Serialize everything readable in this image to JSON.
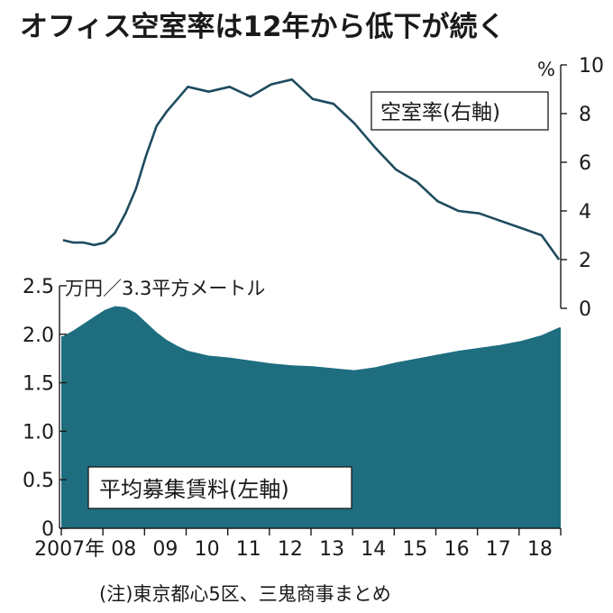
{
  "title": "オフィス空室率は12年から低下が続く",
  "note": "(注)東京都心5区、三鬼商事まとめ",
  "chart_data": {
    "type": "area+line",
    "title": "オフィス空室率は12年から低下が続く",
    "x_tick_labels": [
      "2007年",
      "08",
      "09",
      "10",
      "11",
      "12",
      "13",
      "14",
      "15",
      "16",
      "17",
      "18"
    ],
    "x_range": [
      "2007-01",
      "2018-12"
    ],
    "grid": false,
    "series": [
      {
        "name": "平均募集賃料(左軸)",
        "axis": "left",
        "type": "area",
        "color": "#1e6e80",
        "unit": "万円／3.3平方メートル",
        "ylim": [
          0,
          2.5
        ],
        "yticks": [
          "0",
          "0.5",
          "1.0",
          "1.5",
          "2.0",
          "2.5"
        ],
        "x": [
          "2007-01",
          "2007-04",
          "2007-07",
          "2007-10",
          "2008-01",
          "2008-04",
          "2008-07",
          "2008-10",
          "2009-01",
          "2009-04",
          "2009-07",
          "2009-10",
          "2010-01",
          "2010-07",
          "2011-01",
          "2011-07",
          "2012-01",
          "2012-07",
          "2013-01",
          "2013-07",
          "2014-01",
          "2014-07",
          "2015-01",
          "2015-07",
          "2016-01",
          "2016-07",
          "2017-01",
          "2017-07",
          "2018-01",
          "2018-07",
          "2018-12"
        ],
        "values": [
          1.98,
          2.04,
          2.11,
          2.18,
          2.25,
          2.29,
          2.28,
          2.22,
          2.12,
          2.02,
          1.94,
          1.88,
          1.83,
          1.78,
          1.76,
          1.73,
          1.7,
          1.68,
          1.67,
          1.65,
          1.63,
          1.66,
          1.71,
          1.75,
          1.79,
          1.83,
          1.86,
          1.89,
          1.93,
          1.99,
          2.07
        ]
      },
      {
        "name": "空室率(右軸)",
        "axis": "right",
        "type": "line",
        "color": "#1e4b5e",
        "unit": "%",
        "ylim": [
          0,
          10
        ],
        "yticks": [
          "0",
          "2",
          "4",
          "6",
          "8",
          "10"
        ],
        "x": [
          "2007-01",
          "2007-04",
          "2007-07",
          "2007-10",
          "2008-01",
          "2008-04",
          "2008-07",
          "2008-10",
          "2009-01",
          "2009-04",
          "2009-07",
          "2009-10",
          "2010-01",
          "2010-07",
          "2011-01",
          "2011-07",
          "2012-01",
          "2012-07",
          "2013-01",
          "2013-07",
          "2014-01",
          "2014-07",
          "2015-01",
          "2015-07",
          "2016-01",
          "2016-07",
          "2017-01",
          "2017-07",
          "2018-01",
          "2018-07",
          "2018-12"
        ],
        "values": [
          2.8,
          2.7,
          2.7,
          2.6,
          2.7,
          3.1,
          3.9,
          4.9,
          6.3,
          7.5,
          8.1,
          8.6,
          9.1,
          8.9,
          9.1,
          8.7,
          9.2,
          9.4,
          8.6,
          8.4,
          7.6,
          6.6,
          5.7,
          5.2,
          4.4,
          4.0,
          3.9,
          3.6,
          3.3,
          3.0,
          2.0
        ]
      }
    ]
  }
}
